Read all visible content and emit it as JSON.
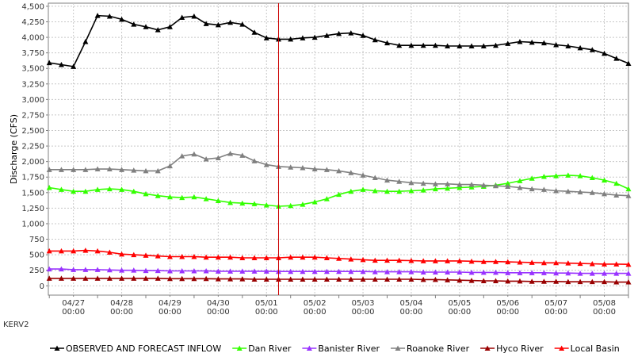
{
  "chart_data": {
    "type": "line",
    "title": "",
    "ylabel": "Discharge (CFS)",
    "xlabel": "",
    "ylim": [
      -150,
      4550
    ],
    "xlim": [
      -0.02,
      12.0
    ],
    "grid": true,
    "legend_position": "bottom",
    "corner_label": "KERV2",
    "y_ticks": [
      0,
      250,
      500,
      750,
      1000,
      1250,
      1500,
      1750,
      2000,
      2250,
      2500,
      2750,
      3000,
      3250,
      3500,
      3750,
      4000,
      4250,
      4500
    ],
    "y_tick_labels": [
      "0",
      "250",
      "500",
      "750",
      "1,000",
      "1,250",
      "1,500",
      "1,750",
      "2,000",
      "2,250",
      "2,500",
      "2,750",
      "3,000",
      "3,250",
      "3,500",
      "3,750",
      "4,000",
      "4,250",
      "4,500"
    ],
    "x_ticks": [
      {
        "x": 0.5,
        "date": "04/27",
        "time": "00:00"
      },
      {
        "x": 1.5,
        "date": "04/28",
        "time": "00:00"
      },
      {
        "x": 2.5,
        "date": "04/29",
        "time": "00:00"
      },
      {
        "x": 3.5,
        "date": "04/30",
        "time": "00:00"
      },
      {
        "x": 4.5,
        "date": "05/01",
        "time": "00:00"
      },
      {
        "x": 5.5,
        "date": "05/02",
        "time": "00:00"
      },
      {
        "x": 6.5,
        "date": "05/03",
        "time": "00:00"
      },
      {
        "x": 7.5,
        "date": "05/04",
        "time": "00:00"
      },
      {
        "x": 8.5,
        "date": "05/05",
        "time": "00:00"
      },
      {
        "x": 9.5,
        "date": "05/06",
        "time": "00:00"
      },
      {
        "x": 10.5,
        "date": "05/07",
        "time": "00:00"
      },
      {
        "x": 11.5,
        "date": "05/08",
        "time": "00:00"
      }
    ],
    "x_minor_ticks": [
      0,
      1,
      2,
      3,
      4,
      5,
      6,
      7,
      8,
      9,
      10,
      11,
      12
    ],
    "vline_x": 4.75,
    "vline_color": "#cc0000",
    "x": [
      0.0,
      0.25,
      0.5,
      0.75,
      1.0,
      1.25,
      1.5,
      1.75,
      2.0,
      2.25,
      2.5,
      2.75,
      3.0,
      3.25,
      3.5,
      3.75,
      4.0,
      4.25,
      4.5,
      4.75,
      5.0,
      5.25,
      5.5,
      5.75,
      6.0,
      6.25,
      6.5,
      6.75,
      7.0,
      7.25,
      7.5,
      7.75,
      8.0,
      8.25,
      8.5,
      8.75,
      9.0,
      9.25,
      9.5,
      9.75,
      10.0,
      10.25,
      10.5,
      10.75,
      11.0,
      11.25,
      11.5,
      11.75,
      12.0
    ],
    "series": [
      {
        "name": "OBSERVED AND FORECAST INFLOW",
        "color": "#000000",
        "marker": "triangle-up",
        "values": [
          3590,
          3560,
          3530,
          3930,
          4350,
          4340,
          4290,
          4210,
          4170,
          4120,
          4170,
          4320,
          4340,
          4220,
          4200,
          4240,
          4210,
          4080,
          3990,
          3970,
          3970,
          3990,
          4000,
          4030,
          4060,
          4070,
          4030,
          3960,
          3910,
          3870,
          3870,
          3870,
          3870,
          3860,
          3860,
          3860,
          3860,
          3870,
          3900,
          3930,
          3920,
          3910,
          3880,
          3860,
          3830,
          3800,
          3740,
          3660,
          3580
        ]
      },
      {
        "name": "Dan River",
        "color": "#33ff00",
        "marker": "triangle-up",
        "values": [
          1580,
          1550,
          1520,
          1520,
          1550,
          1560,
          1550,
          1520,
          1480,
          1450,
          1430,
          1420,
          1430,
          1400,
          1370,
          1340,
          1330,
          1320,
          1300,
          1280,
          1290,
          1310,
          1350,
          1400,
          1470,
          1520,
          1550,
          1530,
          1520,
          1520,
          1530,
          1540,
          1560,
          1570,
          1580,
          1590,
          1600,
          1620,
          1650,
          1690,
          1730,
          1760,
          1770,
          1780,
          1770,
          1740,
          1700,
          1650,
          1560
        ]
      },
      {
        "name": "Banister River",
        "color": "#9933ff",
        "marker": "triangle-up",
        "values": [
          270,
          270,
          260,
          260,
          260,
          255,
          250,
          250,
          245,
          245,
          240,
          240,
          240,
          240,
          235,
          235,
          235,
          235,
          235,
          230,
          230,
          230,
          230,
          230,
          230,
          230,
          230,
          225,
          225,
          225,
          225,
          220,
          220,
          220,
          220,
          215,
          215,
          215,
          210,
          210,
          210,
          210,
          205,
          205,
          200,
          200,
          200,
          200,
          200
        ]
      },
      {
        "name": "Roanoke River",
        "color": "#808080",
        "marker": "triangle-up",
        "values": [
          1870,
          1870,
          1870,
          1870,
          1880,
          1880,
          1870,
          1860,
          1850,
          1850,
          1930,
          2090,
          2120,
          2040,
          2060,
          2130,
          2100,
          2010,
          1950,
          1920,
          1910,
          1900,
          1880,
          1870,
          1850,
          1820,
          1780,
          1740,
          1700,
          1680,
          1660,
          1650,
          1640,
          1640,
          1630,
          1630,
          1620,
          1610,
          1600,
          1580,
          1560,
          1550,
          1530,
          1520,
          1510,
          1500,
          1480,
          1460,
          1450
        ]
      },
      {
        "name": "Hyco River",
        "color": "#990000",
        "marker": "triangle-up",
        "values": [
          120,
          120,
          120,
          120,
          120,
          120,
          120,
          120,
          120,
          120,
          115,
          115,
          115,
          115,
          110,
          110,
          110,
          105,
          105,
          105,
          105,
          105,
          105,
          105,
          105,
          105,
          105,
          105,
          105,
          105,
          105,
          100,
          100,
          95,
          90,
          85,
          80,
          80,
          75,
          75,
          70,
          70,
          70,
          65,
          65,
          65,
          65,
          60,
          60
        ]
      },
      {
        "name": "Local Basin",
        "color": "#ff0000",
        "marker": "triangle-up",
        "values": [
          560,
          560,
          560,
          570,
          560,
          540,
          510,
          500,
          490,
          480,
          470,
          470,
          470,
          460,
          460,
          460,
          450,
          450,
          450,
          450,
          460,
          460,
          460,
          450,
          440,
          430,
          420,
          410,
          410,
          410,
          405,
          400,
          400,
          400,
          400,
          395,
          390,
          390,
          385,
          380,
          375,
          370,
          370,
          365,
          360,
          355,
          350,
          350,
          345
        ]
      }
    ]
  }
}
